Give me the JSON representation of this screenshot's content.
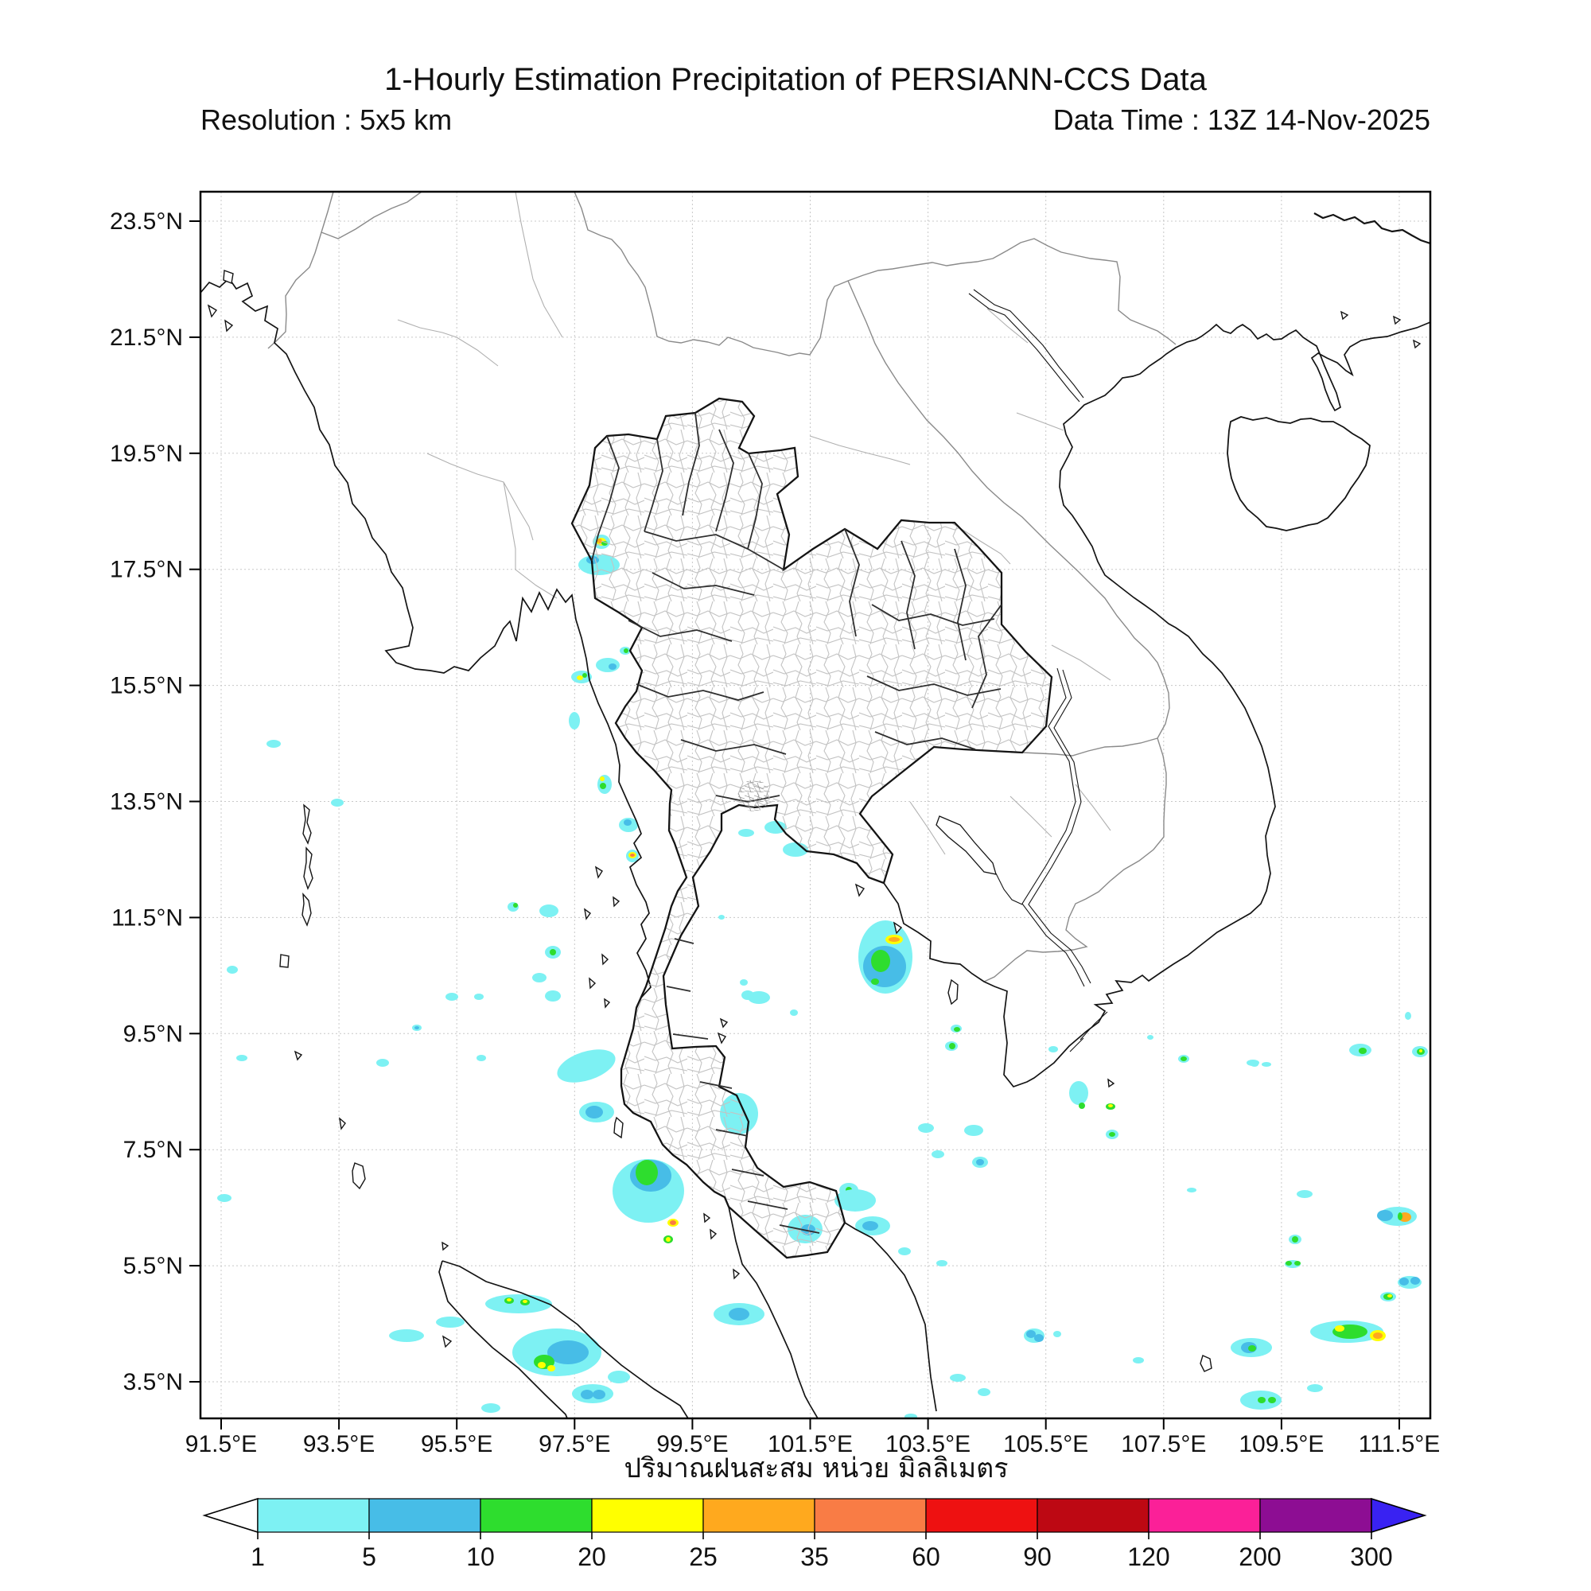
{
  "title": "1-Hourly Estimation Precipitation of PERSIANN-CCS Data",
  "subtitle_left": "Resolution : 5x5 km",
  "subtitle_right": "Data Time : 13Z 14-Nov-2025",
  "caption": "ปริมาณฝนสะสม หน่วย มิลลิเมตร",
  "x_axis": {
    "tick_labels": [
      "91.5°E",
      "93.5°E",
      "95.5°E",
      "97.5°E",
      "99.5°E",
      "101.5°E",
      "103.5°E",
      "105.5°E",
      "107.5°E",
      "109.5°E",
      "111.5°E"
    ]
  },
  "y_axis": {
    "tick_labels": [
      "23.5°N",
      "21.5°N",
      "19.5°N",
      "17.5°N",
      "15.5°N",
      "13.5°N",
      "11.5°N",
      "9.5°N",
      "7.5°N",
      "5.5°N",
      "3.5°N"
    ]
  },
  "colorbar": {
    "tick_labels": [
      "1",
      "5",
      "10",
      "20",
      "25",
      "35",
      "60",
      "90",
      "120",
      "200",
      "300"
    ],
    "segment_colors": [
      "#7df1f3",
      "#47bde7",
      "#2edd2e",
      "#ffff00",
      "#ffa91e",
      "#f97c45",
      "#ee1111",
      "#bd0813",
      "#fb2098",
      "#8d0d93"
    ],
    "under_color": "#ffffff",
    "over_color": "#3922f2",
    "outline_color": "#000000"
  },
  "map": {
    "grid_color": "#c8c8c8",
    "coast_color": "#141414",
    "country_border_color": "#8a8a8a",
    "province_color": "#b0b0b0",
    "precipitation_palette": {
      "c1": "#7df1f3",
      "c2": "#47bde7",
      "c3": "#2edd2e",
      "c4": "#ffff00",
      "c5": "#ffa91e",
      "c6": "#f97c45"
    },
    "precipitation_blobs": [
      [
        756,
        681,
        11,
        9,
        "c1"
      ],
      [
        756,
        681,
        6,
        5,
        "c4"
      ],
      [
        754,
        680,
        3,
        3,
        "c5"
      ],
      [
        760,
        683,
        4,
        3,
        "c3"
      ],
      [
        753,
        710,
        26,
        13,
        "c1"
      ],
      [
        745,
        704,
        8,
        5,
        "c2"
      ],
      [
        786,
        818,
        7,
        5,
        "c1"
      ],
      [
        787,
        818,
        3,
        3,
        "c3"
      ],
      [
        764,
        836,
        15,
        9,
        "c1"
      ],
      [
        770,
        838,
        5,
        4,
        "c2"
      ],
      [
        731,
        851,
        13,
        8,
        "c1"
      ],
      [
        729,
        852,
        4,
        3,
        "c4"
      ],
      [
        735,
        849,
        3,
        3,
        "c3"
      ],
      [
        722,
        906,
        7,
        11,
        "c1"
      ],
      [
        760,
        986,
        9,
        12,
        "c1"
      ],
      [
        758,
        988,
        4,
        4,
        "c3"
      ],
      [
        757,
        979,
        3,
        3,
        "c4"
      ],
      [
        790,
        1037,
        12,
        9,
        "c1"
      ],
      [
        789,
        1034,
        5,
        4,
        "c2"
      ],
      [
        795,
        1076,
        8,
        8,
        "c1"
      ],
      [
        795,
        1075,
        5,
        4,
        "c4"
      ],
      [
        795,
        1075,
        3,
        2,
        "c6"
      ],
      [
        344,
        935,
        9,
        5,
        "c1"
      ],
      [
        424,
        1009,
        8,
        5,
        "c1"
      ],
      [
        292,
        1219,
        7,
        5,
        "c1"
      ],
      [
        304,
        1330,
        7,
        4,
        "c1"
      ],
      [
        282,
        1506,
        9,
        5,
        "c1"
      ],
      [
        481,
        1336,
        8,
        5,
        "c1"
      ],
      [
        524,
        1292,
        6,
        4,
        "c1"
      ],
      [
        524,
        1292,
        3,
        2,
        "c2"
      ],
      [
        605,
        1330,
        6,
        4,
        "c1"
      ],
      [
        602,
        1253,
        6,
        4,
        "c1"
      ],
      [
        568,
        1253,
        8,
        5,
        "c1"
      ],
      [
        645,
        1140,
        7,
        6,
        "c1"
      ],
      [
        648,
        1138,
        3,
        3,
        "c3"
      ],
      [
        690,
        1145,
        12,
        8,
        "c1"
      ],
      [
        695,
        1197,
        10,
        8,
        "c1"
      ],
      [
        695,
        1197,
        4,
        4,
        "c3"
      ],
      [
        678,
        1229,
        9,
        6,
        "c1"
      ],
      [
        695,
        1252,
        10,
        7,
        "c1"
      ],
      [
        737,
        1340,
        38,
        18,
        "c1",
        -18
      ],
      [
        750,
        1398,
        22,
        13,
        "c1"
      ],
      [
        747,
        1398,
        11,
        8,
        "c2"
      ],
      [
        815,
        1497,
        45,
        40,
        "c1"
      ],
      [
        818,
        1478,
        26,
        20,
        "c2"
      ],
      [
        813,
        1474,
        14,
        16,
        "c3"
      ],
      [
        846,
        1537,
        7,
        5,
        "c4"
      ],
      [
        846,
        1537,
        4,
        3,
        "c6"
      ],
      [
        840,
        1558,
        6,
        5,
        "c3"
      ],
      [
        840,
        1558,
        3,
        3,
        "c4"
      ],
      [
        929,
        1400,
        24,
        26,
        "c1"
      ],
      [
        954,
        1254,
        14,
        8,
        "c1"
      ],
      [
        1012,
        1545,
        22,
        18,
        "c1"
      ],
      [
        1016,
        1546,
        9,
        7,
        "c2"
      ],
      [
        929,
        1652,
        32,
        14,
        "c1"
      ],
      [
        929,
        1652,
        13,
        8,
        "c2"
      ],
      [
        938,
        1047,
        10,
        5,
        "c1"
      ],
      [
        907,
        1153,
        4,
        3,
        "c1"
      ],
      [
        935,
        1235,
        5,
        4,
        "c1"
      ],
      [
        940,
        1251,
        8,
        6,
        "c1"
      ],
      [
        998,
        1273,
        5,
        4,
        "c1"
      ],
      [
        975,
        1040,
        14,
        8,
        "c1"
      ],
      [
        1000,
        1068,
        16,
        9,
        "c1"
      ],
      [
        1113,
        1203,
        34,
        46,
        "c1"
      ],
      [
        1112,
        1215,
        27,
        26,
        "c2"
      ],
      [
        1107,
        1208,
        12,
        14,
        "c3"
      ],
      [
        1100,
        1234,
        5,
        4,
        "c3"
      ],
      [
        1124,
        1181,
        11,
        6,
        "c4"
      ],
      [
        1124,
        1181,
        7,
        3,
        "c5"
      ],
      [
        1202,
        1293,
        7,
        5,
        "c1"
      ],
      [
        1203,
        1294,
        4,
        3,
        "c3"
      ],
      [
        1196,
        1315,
        8,
        6,
        "c1"
      ],
      [
        1197,
        1315,
        4,
        4,
        "c3"
      ],
      [
        1164,
        1418,
        10,
        6,
        "c1"
      ],
      [
        1224,
        1421,
        12,
        7,
        "c1"
      ],
      [
        1179,
        1451,
        8,
        5,
        "c1"
      ],
      [
        1232,
        1461,
        10,
        7,
        "c1"
      ],
      [
        1232,
        1461,
        5,
        4,
        "c2"
      ],
      [
        1067,
        1496,
        12,
        9,
        "c1"
      ],
      [
        1067,
        1496,
        4,
        4,
        "c3"
      ],
      [
        1075,
        1509,
        26,
        14,
        "c1"
      ],
      [
        1097,
        1541,
        22,
        12,
        "c1"
      ],
      [
        1094,
        1541,
        10,
        6,
        "c2"
      ],
      [
        1137,
        1573,
        8,
        5,
        "c1"
      ],
      [
        1184,
        1588,
        7,
        4,
        "c1"
      ],
      [
        1356,
        1374,
        12,
        15,
        "c1"
      ],
      [
        1360,
        1390,
        4,
        4,
        "c3"
      ],
      [
        1396,
        1391,
        6,
        4,
        "c3"
      ],
      [
        1396,
        1390,
        3,
        2,
        "c4"
      ],
      [
        1398,
        1426,
        8,
        6,
        "c1"
      ],
      [
        1398,
        1426,
        4,
        3,
        "c3"
      ],
      [
        1324,
        1319,
        6,
        4,
        "c1"
      ],
      [
        1446,
        1304,
        4,
        3,
        "c1"
      ],
      [
        1488,
        1331,
        7,
        5,
        "c1"
      ],
      [
        1488,
        1331,
        4,
        3,
        "c3"
      ],
      [
        1575,
        1336,
        8,
        4,
        "c1"
      ],
      [
        1498,
        1496,
        6,
        3,
        "c1"
      ],
      [
        1640,
        1501,
        10,
        5,
        "c1"
      ],
      [
        1710,
        1320,
        14,
        8,
        "c1"
      ],
      [
        1713,
        1321,
        5,
        4,
        "c3"
      ],
      [
        1785,
        1322,
        10,
        7,
        "c1"
      ],
      [
        1786,
        1322,
        5,
        4,
        "c3"
      ],
      [
        1786,
        1321,
        2,
        2,
        "c4"
      ],
      [
        1770,
        1277,
        4,
        5,
        "c1"
      ],
      [
        1577,
        1338,
        5,
        3,
        "c1"
      ],
      [
        1592,
        1338,
        6,
        3,
        "c1"
      ],
      [
        1757,
        1529,
        24,
        12,
        "c1"
      ],
      [
        1741,
        1528,
        10,
        7,
        "c2"
      ],
      [
        1766,
        1530,
        8,
        6,
        "c5"
      ],
      [
        1760,
        1529,
        3,
        5,
        "c3"
      ],
      [
        1628,
        1558,
        8,
        6,
        "c1"
      ],
      [
        1628,
        1558,
        4,
        4,
        "c3"
      ],
      [
        1625,
        1589,
        10,
        5,
        "c1"
      ],
      [
        1620,
        1588,
        4,
        3,
        "c3"
      ],
      [
        1631,
        1588,
        4,
        3,
        "c3"
      ],
      [
        1772,
        1612,
        15,
        8,
        "c1"
      ],
      [
        1765,
        1611,
        6,
        5,
        "c2"
      ],
      [
        1779,
        1610,
        6,
        5,
        "c2"
      ],
      [
        1745,
        1630,
        10,
        6,
        "c1"
      ],
      [
        1745,
        1630,
        6,
        4,
        "c3"
      ],
      [
        1747,
        1629,
        3,
        2,
        "c4"
      ],
      [
        1693,
        1674,
        46,
        14,
        "c1"
      ],
      [
        1697,
        1674,
        22,
        9,
        "c3"
      ],
      [
        1684,
        1670,
        6,
        4,
        "c4"
      ],
      [
        1732,
        1679,
        10,
        7,
        "c4"
      ],
      [
        1732,
        1679,
        6,
        4,
        "c5"
      ],
      [
        1573,
        1694,
        26,
        12,
        "c1"
      ],
      [
        1570,
        1694,
        10,
        7,
        "c2"
      ],
      [
        1574,
        1695,
        5,
        4,
        "c3"
      ],
      [
        1431,
        1710,
        7,
        4,
        "c1"
      ],
      [
        1585,
        1760,
        26,
        12,
        "c1"
      ],
      [
        1586,
        1760,
        5,
        4,
        "c3"
      ],
      [
        1599,
        1760,
        5,
        4,
        "c3"
      ],
      [
        1653,
        1745,
        10,
        5,
        "c1"
      ],
      [
        1300,
        1679,
        13,
        9,
        "c1"
      ],
      [
        1296,
        1677,
        6,
        5,
        "c2"
      ],
      [
        1306,
        1682,
        6,
        5,
        "c2"
      ],
      [
        1329,
        1677,
        5,
        4,
        "c1"
      ],
      [
        1204,
        1732,
        10,
        5,
        "c1"
      ],
      [
        1237,
        1750,
        8,
        5,
        "c1"
      ],
      [
        1145,
        1781,
        8,
        4,
        "c1"
      ],
      [
        652,
        1639,
        42,
        12,
        "c1"
      ],
      [
        640,
        1635,
        6,
        4,
        "c3"
      ],
      [
        640,
        1634,
        3,
        2,
        "c4"
      ],
      [
        660,
        1637,
        6,
        4,
        "c3"
      ],
      [
        660,
        1636,
        3,
        2,
        "c4"
      ],
      [
        700,
        1700,
        56,
        30,
        "c1"
      ],
      [
        714,
        1700,
        26,
        15,
        "c2"
      ],
      [
        684,
        1712,
        13,
        9,
        "c3"
      ],
      [
        681,
        1716,
        5,
        4,
        "c4"
      ],
      [
        693,
        1720,
        5,
        4,
        "c4"
      ],
      [
        511,
        1679,
        22,
        8,
        "c1"
      ],
      [
        566,
        1662,
        18,
        7,
        "c1"
      ],
      [
        745,
        1752,
        26,
        12,
        "c1"
      ],
      [
        738,
        1753,
        8,
        6,
        "c2"
      ],
      [
        753,
        1753,
        8,
        6,
        "c2"
      ],
      [
        778,
        1731,
        14,
        8,
        "c1"
      ],
      [
        617,
        1770,
        12,
        6,
        "c1"
      ]
    ]
  }
}
